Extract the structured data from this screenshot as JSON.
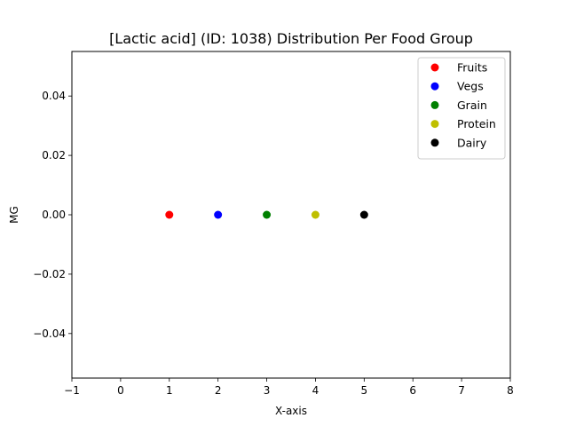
{
  "chart_data": {
    "type": "scatter",
    "title": "[Lactic acid] (ID: 1038) Distribution Per Food Group",
    "xlabel": "X-axis",
    "ylabel": "MG",
    "xlim": [
      -1,
      8
    ],
    "ylim": [
      -0.055,
      0.055
    ],
    "xticks": [
      -1,
      0,
      1,
      2,
      3,
      4,
      5,
      6,
      7,
      8
    ],
    "xtick_labels": [
      "−1",
      "0",
      "1",
      "2",
      "3",
      "4",
      "5",
      "6",
      "7",
      "8"
    ],
    "yticks": [
      -0.04,
      -0.02,
      0.0,
      0.02,
      0.04
    ],
    "ytick_labels": [
      "−0.04",
      "−0.02",
      "0.00",
      "0.02",
      "0.04"
    ],
    "grid": false,
    "legend_position": "top-right",
    "series": [
      {
        "name": "Fruits",
        "color": "#ff0000",
        "x": [
          1
        ],
        "y": [
          0.0
        ]
      },
      {
        "name": "Vegs",
        "color": "#0000ff",
        "x": [
          2
        ],
        "y": [
          0.0
        ]
      },
      {
        "name": "Grain",
        "color": "#008000",
        "x": [
          3
        ],
        "y": [
          0.0
        ]
      },
      {
        "name": "Protein",
        "color": "#bfbf00",
        "x": [
          4
        ],
        "y": [
          0.0
        ]
      },
      {
        "name": "Dairy",
        "color": "#000000",
        "x": [
          5
        ],
        "y": [
          0.0
        ]
      }
    ]
  }
}
